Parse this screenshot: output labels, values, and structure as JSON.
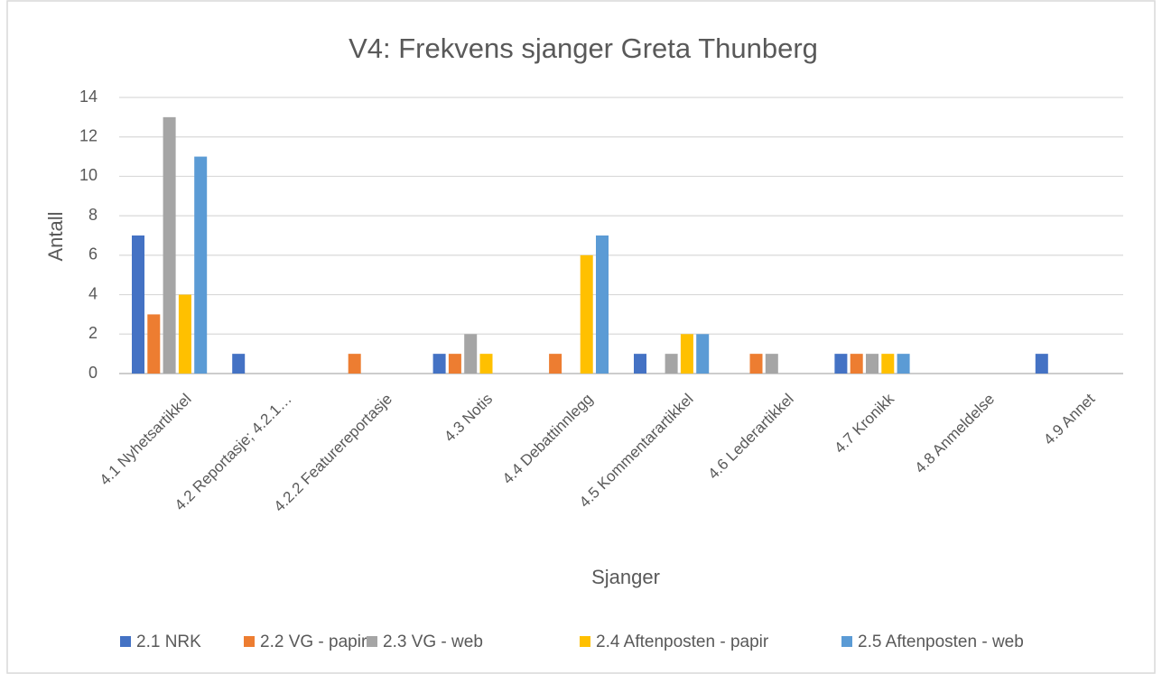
{
  "chart_data": {
    "type": "bar",
    "title": "V4: Frekvens sjanger Greta Thunberg",
    "x_label": "Sjanger",
    "y_label": "Antall",
    "categories": [
      "4.1 Nyhetsartikkel",
      "4.2 Reportasje; 4.2.1…",
      "4.2.2 Featurereportasje",
      "4.3 Notis",
      "4.4 Debattinnlegg",
      "4.5 Kommentarartikkel",
      "4.6 Lederartikkel",
      "4.7 Kronikk",
      "4.8 Anmeldelse",
      "4.9 Annet"
    ],
    "series": [
      {
        "name": "2.1 NRK",
        "color": "#4472c4",
        "values": [
          7,
          1,
          0,
          1,
          0,
          1,
          0,
          1,
          0,
          1
        ]
      },
      {
        "name": "2.2 VG - papir",
        "color": "#ed7d31",
        "values": [
          3,
          0,
          1,
          1,
          1,
          0,
          1,
          1,
          0,
          0
        ]
      },
      {
        "name": "2.3 VG - web",
        "color": "#a5a5a5",
        "values": [
          13,
          0,
          0,
          2,
          0,
          1,
          1,
          1,
          0,
          0
        ]
      },
      {
        "name": "2.4 Aftenposten - papir",
        "color": "#ffc000",
        "values": [
          4,
          0,
          0,
          1,
          6,
          2,
          0,
          1,
          0,
          0
        ]
      },
      {
        "name": "2.5 Aftenposten - web",
        "color": "#5b9bd5",
        "values": [
          11,
          0,
          0,
          0,
          7,
          2,
          0,
          1,
          0,
          0
        ]
      }
    ],
    "ylim": [
      0,
      14
    ],
    "yticks": [
      0,
      2,
      4,
      6,
      8,
      10,
      12,
      14
    ],
    "grid": true,
    "legend": "bottom"
  }
}
